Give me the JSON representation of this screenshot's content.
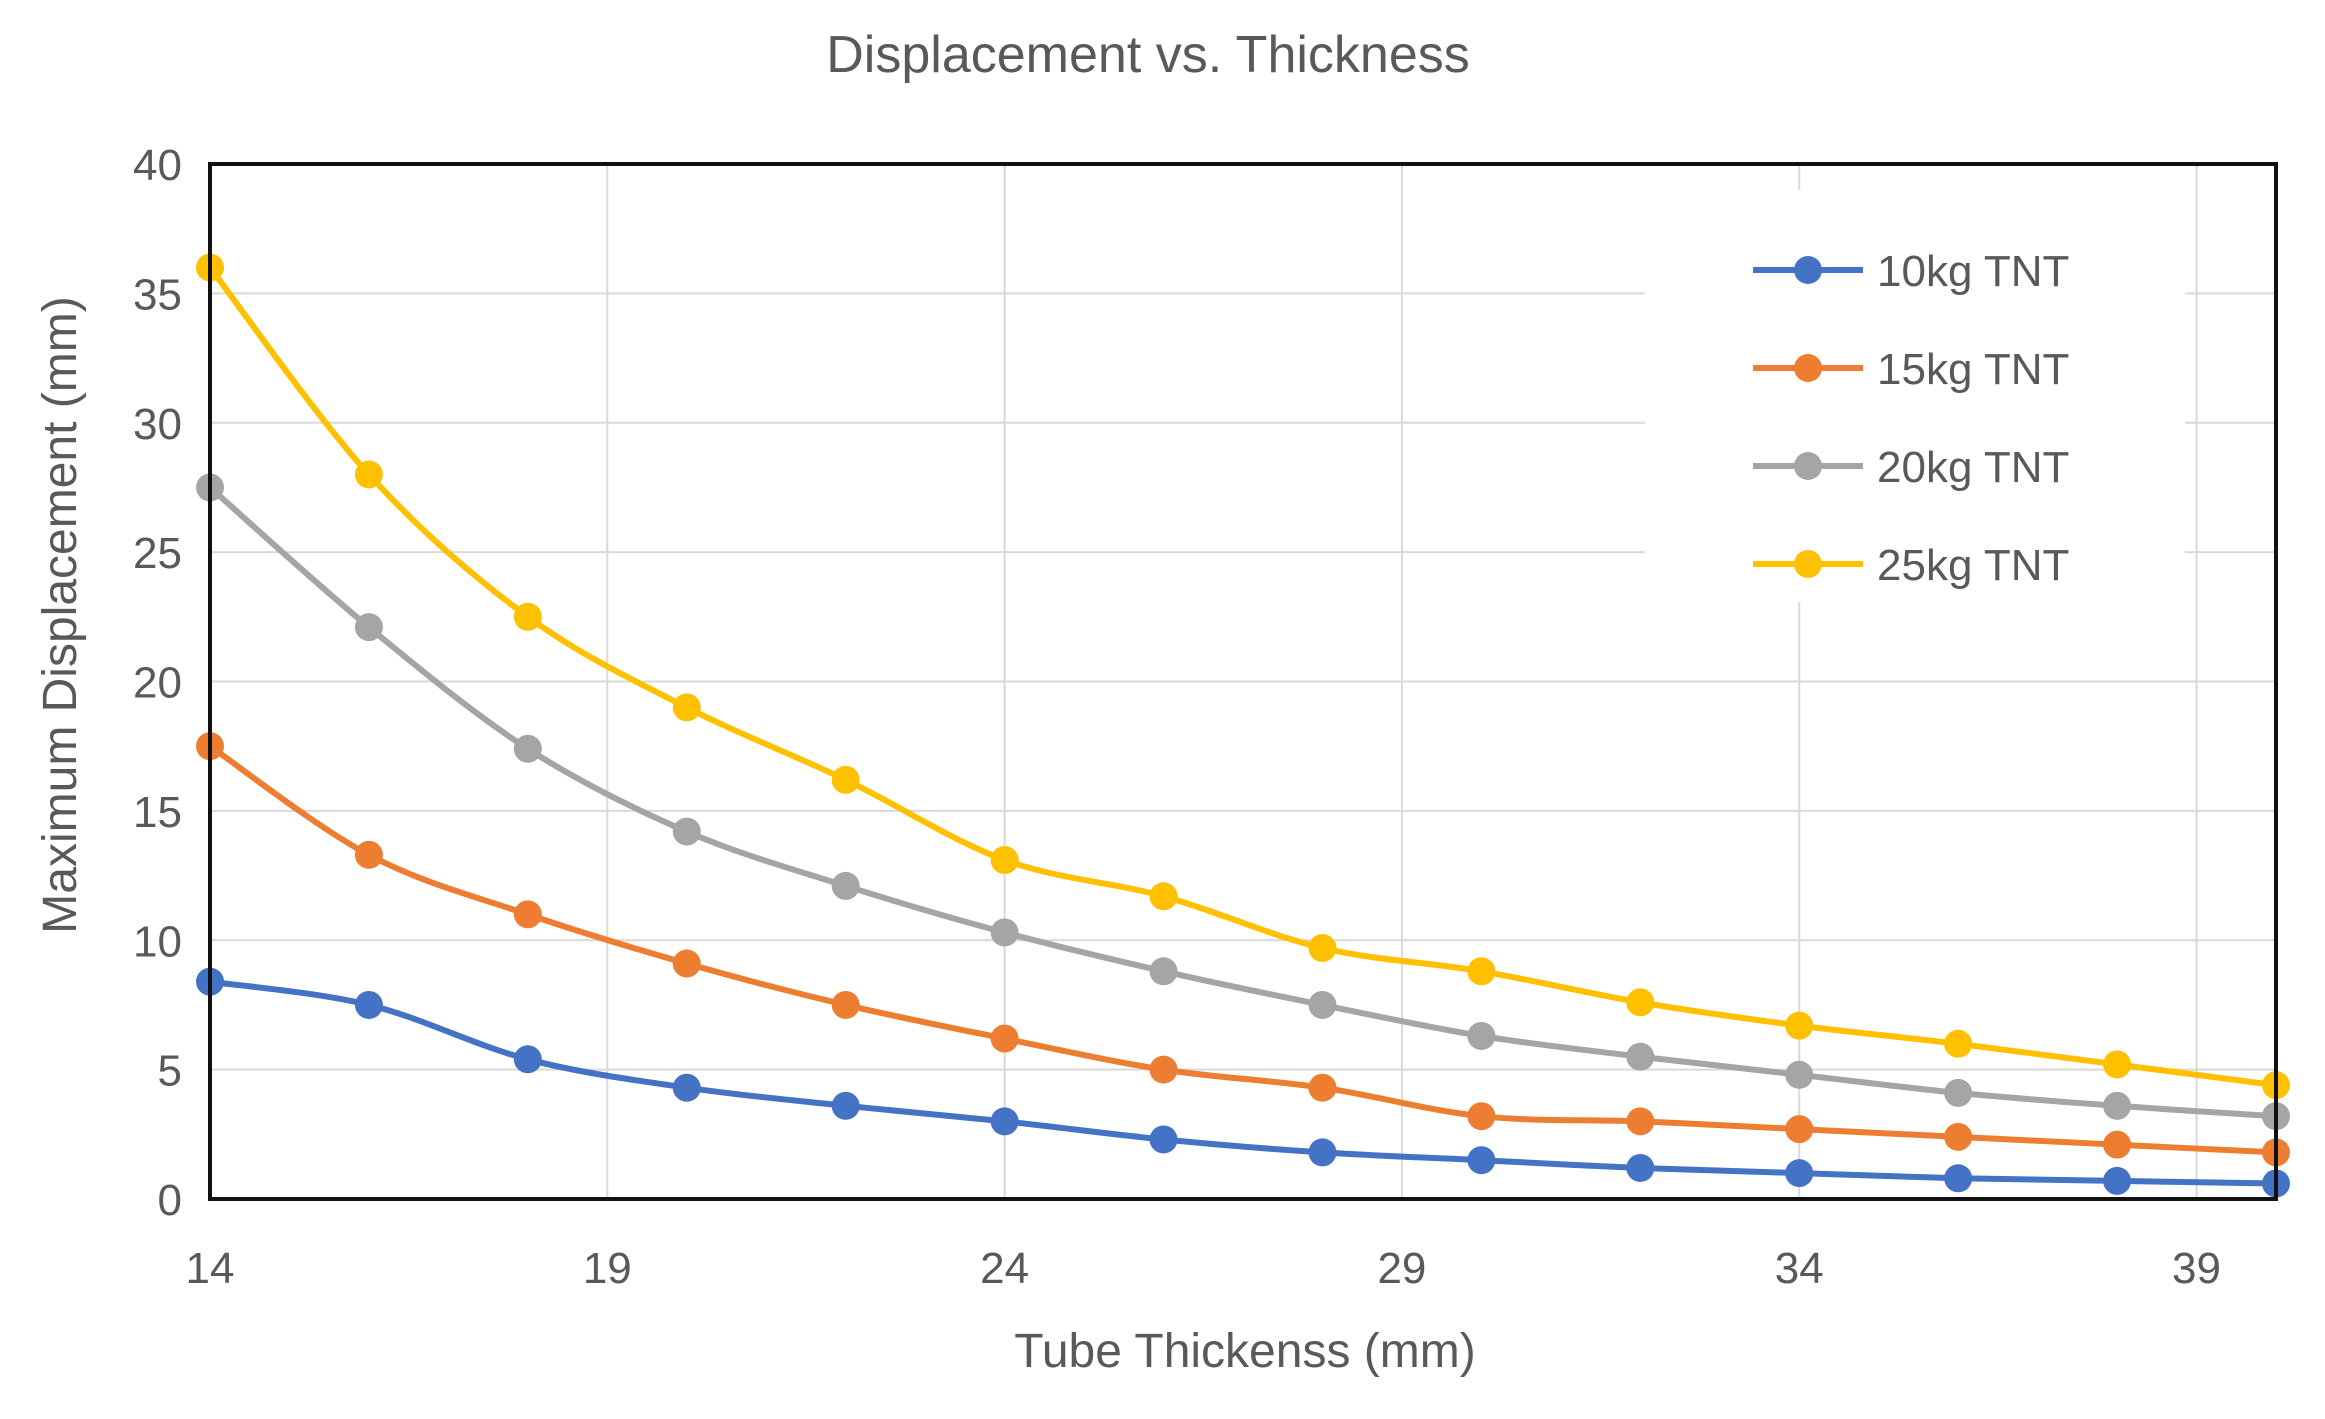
{
  "chart_data": {
    "type": "line",
    "title": "Displacement vs. Thickness",
    "xlabel": "Tube Thickenss (mm)",
    "ylabel": "Maximum Displacement (mm)",
    "xlim": [
      14,
      40
    ],
    "ylim": [
      0,
      40
    ],
    "xticks": [
      14,
      19,
      24,
      29,
      34,
      39
    ],
    "yticks": [
      0,
      5,
      10,
      15,
      20,
      25,
      30,
      35,
      40
    ],
    "grid": true,
    "smooth": true,
    "legend_position": "top-right",
    "x": [
      14,
      16,
      18,
      20,
      22,
      24,
      26,
      28,
      30,
      32,
      34,
      36,
      38,
      40
    ],
    "series": [
      {
        "name": "10kg TNT",
        "color": "#4472C4",
        "values": [
          8.4,
          7.5,
          5.4,
          4.3,
          3.6,
          3.0,
          2.3,
          1.8,
          1.5,
          1.2,
          1.0,
          0.8,
          0.7,
          0.6
        ]
      },
      {
        "name": "15kg TNT",
        "color": "#ED7D31",
        "values": [
          17.5,
          13.3,
          11.0,
          9.1,
          7.5,
          6.2,
          5.0,
          4.3,
          3.2,
          3.0,
          2.7,
          2.4,
          2.1,
          1.8
        ]
      },
      {
        "name": "20kg TNT",
        "color": "#A5A5A5",
        "values": [
          27.5,
          22.1,
          17.4,
          14.2,
          12.1,
          10.3,
          8.8,
          7.5,
          6.3,
          5.5,
          4.8,
          4.1,
          3.6,
          3.2
        ]
      },
      {
        "name": "25kg TNT",
        "color": "#FFC000",
        "values": [
          36.0,
          28.0,
          22.5,
          19.0,
          16.2,
          13.1,
          11.7,
          9.7,
          8.8,
          7.6,
          6.7,
          6.0,
          5.2,
          4.4
        ]
      }
    ]
  }
}
